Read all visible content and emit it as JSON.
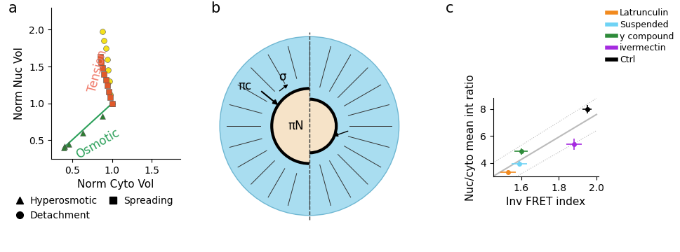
{
  "chart_data": [
    {
      "panel": "a",
      "type": "scatter",
      "x_label": "Norm Cyto Vol",
      "y_label": "Norm Nuc Vol",
      "xlim": [
        0.23,
        1.86
      ],
      "xticks": [
        0.5,
        1.0,
        1.5
      ],
      "ylim": [
        0.25,
        2.3
      ],
      "yticks": [
        0.5,
        1.0,
        1.5,
        2.0
      ],
      "legend": "below",
      "annotations": [
        {
          "text": "Tension",
          "color": "#f07a6a"
        },
        {
          "text": "Osmotic",
          "color": "#2ca05a"
        }
      ],
      "series": [
        {
          "name": "Hyperosmotic",
          "marker": "triangle",
          "color": "#2e7d32",
          "x": [
            1.0,
            0.88,
            0.63,
            0.45,
            0.4,
            0.39
          ],
          "values": [
            1.0,
            0.83,
            0.6,
            0.45,
            0.42,
            0.4
          ]
        },
        {
          "name": "Detachment",
          "marker": "circle",
          "color": "#f5e11b",
          "x": [
            1.0,
            0.98,
            0.97,
            0.95,
            0.94,
            0.92,
            0.9,
            0.88
          ],
          "values": [
            1.0,
            1.12,
            1.3,
            1.45,
            1.6,
            1.75,
            1.85,
            1.98
          ]
        },
        {
          "name": "Spreading",
          "marker": "square",
          "color": "#e0592a",
          "x": [
            1.0,
            0.98,
            0.96,
            0.94,
            0.92,
            0.9,
            0.88,
            0.86,
            0.85
          ],
          "values": [
            1.0,
            1.08,
            1.16,
            1.24,
            1.32,
            1.4,
            1.48,
            1.56,
            1.63
          ]
        }
      ]
    },
    {
      "panel": "c",
      "type": "scatter",
      "x_label": "Inv FRET index",
      "y_label": "Nuc/cyto mean int ratio",
      "xlim": [
        1.45,
        2.01
      ],
      "xticks": [
        1.6,
        1.8,
        2.0
      ],
      "ylim": [
        3.0,
        8.8
      ],
      "yticks": [
        4,
        6,
        8
      ],
      "legend": "right",
      "fit_line": {
        "x": [
          1.45,
          2.0
        ],
        "values": [
          3.0,
          7.6
        ]
      },
      "fit_band_upper": {
        "x": [
          1.45,
          2.0
        ],
        "values": [
          4.0,
          8.8
        ]
      },
      "fit_band_lower": {
        "x": [
          1.45,
          2.0
        ],
        "values": [
          2.0,
          6.4
        ]
      },
      "series": [
        {
          "name": "Latrunculin",
          "color": "#f28a1e",
          "x": [
            1.53
          ],
          "values": [
            3.3
          ],
          "x_err": [
            0.04
          ],
          "y_err": [
            0.15
          ]
        },
        {
          "name": "Suspended",
          "color": "#6fd3f5",
          "x": [
            1.59
          ],
          "values": [
            3.95
          ],
          "x_err": [
            0.04
          ],
          "y_err": [
            0.2
          ]
        },
        {
          "name": "y compound",
          "color": "#2e8b3a",
          "x": [
            1.6
          ],
          "values": [
            4.85
          ],
          "x_err": [
            0.035
          ],
          "y_err": [
            0.25
          ]
        },
        {
          "name": "ivermectin",
          "color": "#a52be0",
          "x": [
            1.88
          ],
          "values": [
            5.4
          ],
          "x_err": [
            0.04
          ],
          "y_err": [
            0.4
          ]
        },
        {
          "name": "Ctrl",
          "color": "#000000",
          "x": [
            1.95
          ],
          "values": [
            8.0
          ],
          "x_err": [
            0.025
          ],
          "y_err": [
            0.3
          ]
        }
      ]
    }
  ],
  "diagram": {
    "panel": "b",
    "labels": {
      "cytoplasm": "πc",
      "tension": "σ",
      "nucleus": "πN"
    }
  }
}
